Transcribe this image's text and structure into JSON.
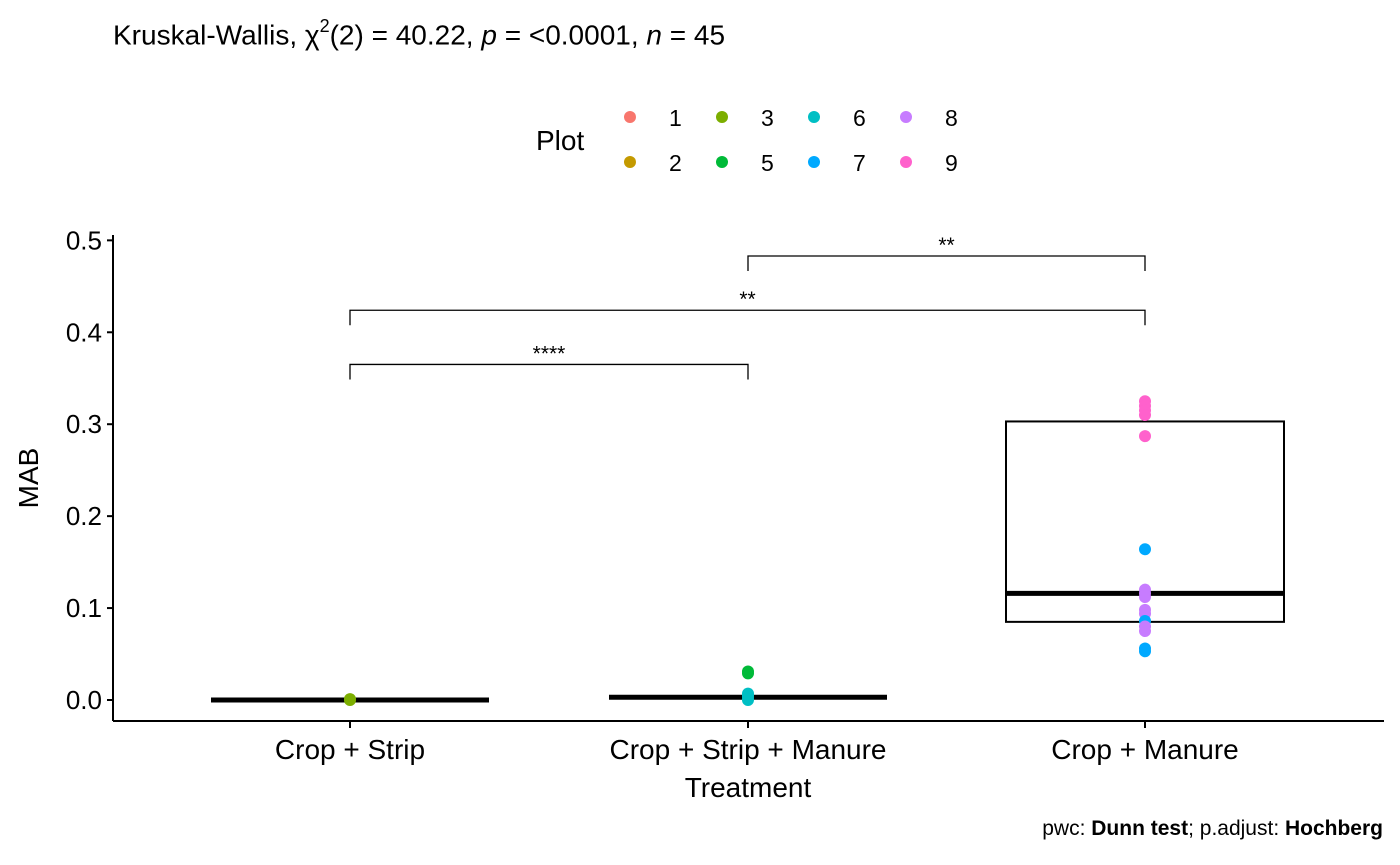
{
  "subtitle": {
    "test_name": "Kruskal-Wallis, ",
    "chi_symbol": "χ",
    "chi_sup": "2",
    "df_text": "(2) = 40.22, ",
    "p_symbol": "p",
    "p_text": " = <0.0001, ",
    "n_symbol": "n",
    "n_text": " = 45"
  },
  "caption": {
    "pwc_label": "pwc: ",
    "pwc_value": "Dunn test",
    "sep": "; p.adjust: ",
    "adjust_value": "Hochberg"
  },
  "legend": {
    "title": "Plot",
    "items": [
      {
        "label": "1",
        "color": "#F8766D"
      },
      {
        "label": "2",
        "color": "#C49A00"
      },
      {
        "label": "3",
        "color": "#7CAE00"
      },
      {
        "label": "5",
        "color": "#00BA38"
      },
      {
        "label": "6",
        "color": "#00BFC4"
      },
      {
        "label": "7",
        "color": "#00A9FF"
      },
      {
        "label": "8",
        "color": "#C77CFF"
      },
      {
        "label": "9",
        "color": "#FF61CC"
      }
    ]
  },
  "chart_data": {
    "type": "box",
    "xlabel": "Treatment",
    "ylabel": "MAB",
    "ylim": [
      -0.024,
      0.5
    ],
    "yticks": [
      "0.0",
      "0.1",
      "0.2",
      "0.3",
      "0.4",
      "0.5"
    ],
    "categories": [
      "Crop + Strip",
      "Crop + Strip + Manure",
      "Crop + Manure"
    ],
    "boxes": [
      {
        "category": "Crop + Strip",
        "q1": 0.0,
        "median": 0.0,
        "q3": 0.0
      },
      {
        "category": "Crop + Strip + Manure",
        "q1": 0.003,
        "median": 0.003,
        "q3": 0.003
      },
      {
        "category": "Crop + Manure",
        "q1": 0.085,
        "median": 0.116,
        "q3": 0.303
      }
    ],
    "points": [
      {
        "category": "Crop + Strip",
        "plot": "3",
        "y": 0.0
      },
      {
        "category": "Crop + Strip",
        "plot": "3",
        "y": 0.001
      },
      {
        "category": "Crop + Strip + Manure",
        "plot": "6",
        "y": 0.0
      },
      {
        "category": "Crop + Strip + Manure",
        "plot": "6",
        "y": 0.003
      },
      {
        "category": "Crop + Strip + Manure",
        "plot": "6",
        "y": 0.005
      },
      {
        "category": "Crop + Strip + Manure",
        "plot": "6",
        "y": 0.007
      },
      {
        "category": "Crop + Strip + Manure",
        "plot": "5",
        "y": 0.029
      },
      {
        "category": "Crop + Strip + Manure",
        "plot": "5",
        "y": 0.031
      },
      {
        "category": "Crop + Manure",
        "plot": "9",
        "y": 0.325
      },
      {
        "category": "Crop + Manure",
        "plot": "9",
        "y": 0.32
      },
      {
        "category": "Crop + Manure",
        "plot": "9",
        "y": 0.315
      },
      {
        "category": "Crop + Manure",
        "plot": "9",
        "y": 0.31
      },
      {
        "category": "Crop + Manure",
        "plot": "9",
        "y": 0.287
      },
      {
        "category": "Crop + Manure",
        "plot": "7",
        "y": 0.164
      },
      {
        "category": "Crop + Manure",
        "plot": "8",
        "y": 0.12
      },
      {
        "category": "Crop + Manure",
        "plot": "8",
        "y": 0.116
      },
      {
        "category": "Crop + Manure",
        "plot": "8",
        "y": 0.112
      },
      {
        "category": "Crop + Manure",
        "plot": "8",
        "y": 0.098
      },
      {
        "category": "Crop + Manure",
        "plot": "8",
        "y": 0.094
      },
      {
        "category": "Crop + Manure",
        "plot": "7",
        "y": 0.086
      },
      {
        "category": "Crop + Manure",
        "plot": "8",
        "y": 0.08
      },
      {
        "category": "Crop + Manure",
        "plot": "8",
        "y": 0.075
      },
      {
        "category": "Crop + Manure",
        "plot": "7",
        "y": 0.056
      },
      {
        "category": "Crop + Manure",
        "plot": "7",
        "y": 0.053
      }
    ],
    "comparisons": [
      {
        "from": "Crop + Strip + Manure",
        "to": "Crop + Manure",
        "y": 0.483,
        "label": "**"
      },
      {
        "from": "Crop + Strip",
        "to": "Crop + Manure",
        "y": 0.424,
        "label": "**"
      },
      {
        "from": "Crop + Strip",
        "to": "Crop + Strip + Manure",
        "y": 0.365,
        "label": "****"
      }
    ]
  }
}
